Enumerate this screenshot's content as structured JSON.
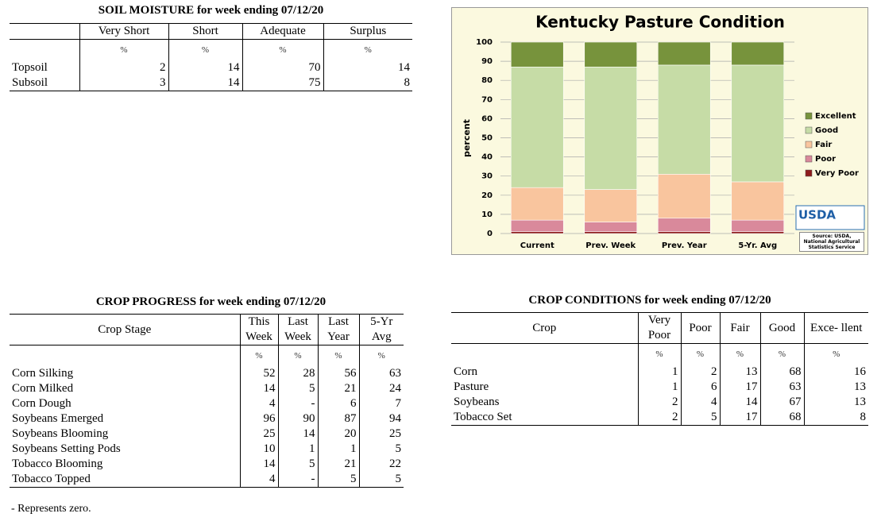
{
  "soil_moisture": {
    "title": "SOIL MOISTURE for week ending 07/12/20",
    "columns": [
      "",
      "Very Short",
      "Short",
      "Adequate",
      "Surplus"
    ],
    "units": [
      "",
      "%",
      "%",
      "%",
      "%"
    ],
    "rows": [
      [
        "Topsoil",
        2,
        14,
        70,
        14
      ],
      [
        "Subsoil",
        3,
        14,
        75,
        8
      ]
    ]
  },
  "crop_progress": {
    "title": "CROP PROGRESS for week ending 07/12/20",
    "columns": [
      "Crop Stage",
      "This Week",
      "Last Week",
      "Last Year",
      "5-Yr Avg"
    ],
    "units": [
      "",
      "%",
      "%",
      "%",
      "%"
    ],
    "rows": [
      [
        "Corn Silking",
        52,
        28,
        56,
        63
      ],
      [
        "Corn Milked",
        14,
        5,
        21,
        24
      ],
      [
        "Corn Dough",
        4,
        "-",
        6,
        7
      ],
      [
        "Soybeans Emerged",
        96,
        90,
        87,
        94
      ],
      [
        "Soybeans Blooming",
        25,
        14,
        20,
        25
      ],
      [
        "Soybeans Setting Pods",
        10,
        1,
        1,
        5
      ],
      [
        "Tobacco Blooming",
        14,
        5,
        21,
        22
      ],
      [
        "Tobacco Topped",
        4,
        "-",
        5,
        5
      ]
    ],
    "footnote": "- Represents zero."
  },
  "crop_conditions": {
    "title": "CROP CONDITIONS for week ending 07/12/20",
    "columns": [
      "Crop",
      "Very Poor",
      "Poor",
      "Fair",
      "Good",
      "Exce- llent"
    ],
    "units": [
      "",
      "%",
      "%",
      "%",
      "%",
      "%"
    ],
    "rows": [
      [
        "Corn",
        1,
        2,
        13,
        68,
        16
      ],
      [
        "Pasture",
        1,
        6,
        17,
        63,
        13
      ],
      [
        "Soybeans",
        2,
        4,
        14,
        67,
        13
      ],
      [
        "Tobacco Set",
        2,
        5,
        17,
        68,
        8
      ]
    ]
  },
  "chart_data": {
    "type": "bar",
    "stacked": true,
    "title": "Kentucky Pasture Condition",
    "y_label": "percent",
    "categories": [
      "Current",
      "Prev. Week",
      "Prev. Year",
      "5-Yr. Avg"
    ],
    "series": [
      {
        "name": "Very Poor",
        "color": "#8e1c1c",
        "values": [
          1,
          1,
          1,
          1
        ]
      },
      {
        "name": "Poor",
        "color": "#d9899b",
        "values": [
          6,
          5,
          7,
          6
        ]
      },
      {
        "name": "Fair",
        "color": "#f9c59e",
        "values": [
          17,
          17,
          23,
          20
        ]
      },
      {
        "name": "Good",
        "color": "#c6dca6",
        "values": [
          63,
          64,
          57,
          61
        ]
      },
      {
        "name": "Excellent",
        "color": "#77933c",
        "values": [
          13,
          13,
          12,
          12
        ]
      }
    ],
    "ylim": [
      0,
      100
    ],
    "yticks": [
      0,
      10,
      20,
      30,
      40,
      50,
      60,
      70,
      80,
      90,
      100
    ],
    "grid": true,
    "legend": "right",
    "logo_text": "USDA",
    "source": "Source: USDA, National Agricultural Statistics Service"
  }
}
